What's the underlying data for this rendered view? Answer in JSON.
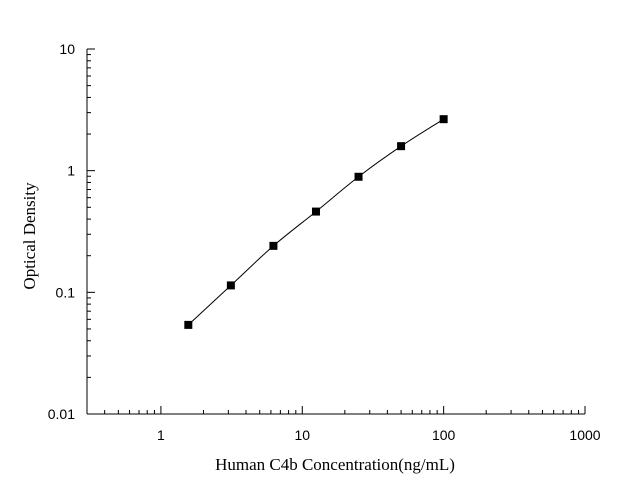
{
  "chart_data": {
    "type": "scatter",
    "title": "",
    "xlabel": "Human C4b Concentration(ng/mL)",
    "ylabel": "Optical Density",
    "x_scale": "log",
    "y_scale": "log",
    "xlim": [
      0.3,
      1000
    ],
    "ylim": [
      0.01,
      10
    ],
    "x_ticks": [
      {
        "value": 1,
        "label": "1"
      },
      {
        "value": 10,
        "label": "10"
      },
      {
        "value": 100,
        "label": "100"
      },
      {
        "value": 1000,
        "label": "1000"
      }
    ],
    "y_ticks": [
      {
        "value": 0.01,
        "label": "0.01"
      },
      {
        "value": 0.1,
        "label": "0.1"
      },
      {
        "value": 1,
        "label": "1"
      },
      {
        "value": 10,
        "label": "10"
      }
    ],
    "grid": false,
    "legend": "none",
    "series": [
      {
        "marker": "square",
        "fit_line": true,
        "color": "#000000",
        "x": [
          1.5625,
          3.125,
          6.25,
          12.5,
          25,
          50,
          100
        ],
        "y": [
          0.054,
          0.114,
          0.241,
          0.461,
          0.891,
          1.59,
          2.65
        ]
      }
    ]
  }
}
